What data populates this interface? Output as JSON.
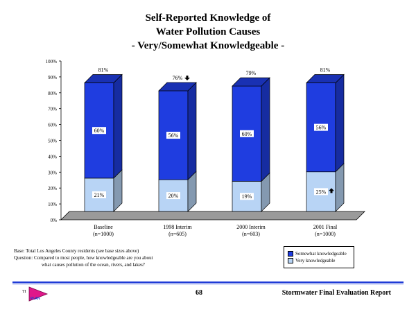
{
  "title": {
    "line1": "Self-Reported Knowledge of",
    "line2": "Water Pollution Causes",
    "line3": "- Very/Somewhat Knowledgeable -"
  },
  "notes": {
    "base": "Base:  Total Los Angeles County residents (see base sizes above)",
    "question_line1": "Question:  Compared to most people, how knowledgeable are you about",
    "question_line2": "what causes pollution of the ocean, rivers, and lakes?"
  },
  "legend": {
    "somewhat": "Somewhat knowledgeable",
    "very": "Very knowledgeable"
  },
  "footer": {
    "page": "68",
    "report": "Stormwater Final Evaluation Report",
    "logo_text": "PLAN"
  },
  "colors": {
    "somewhat": "#1f3de0",
    "very": "#b8d4f5",
    "floor": "#9a9a9a",
    "rule": "#1f3bd6"
  },
  "chart_data": {
    "type": "bar",
    "stacked": true,
    "categories": [
      "Baseline\n(n=1000)",
      "1998 Interim\n(n=605)",
      "2000 Interim\n(n=603)",
      "2001 Final\n(n=1000)"
    ],
    "series": [
      {
        "name": "Very knowledgeable",
        "values": [
          21,
          20,
          19,
          25
        ],
        "labels": [
          "21%",
          "20%",
          "19%",
          "25%"
        ],
        "arrows": [
          null,
          null,
          null,
          "up"
        ]
      },
      {
        "name": "Somewhat knowledgeable",
        "values": [
          60,
          56,
          60,
          56
        ],
        "labels": [
          "60%",
          "56%",
          "60%",
          "56%"
        ],
        "arrows": [
          null,
          null,
          null,
          null
        ]
      }
    ],
    "totals": {
      "labels": [
        "81%",
        "76%",
        "79%",
        "81%"
      ],
      "arrows": [
        null,
        "down",
        null,
        null
      ]
    },
    "yticks": [
      "0%",
      "10%",
      "20%",
      "30%",
      "40%",
      "50%",
      "60%",
      "70%",
      "80%",
      "90%",
      "100%"
    ],
    "ylim": [
      0,
      100
    ],
    "grid": false,
    "legend_position": "bottom-right"
  }
}
